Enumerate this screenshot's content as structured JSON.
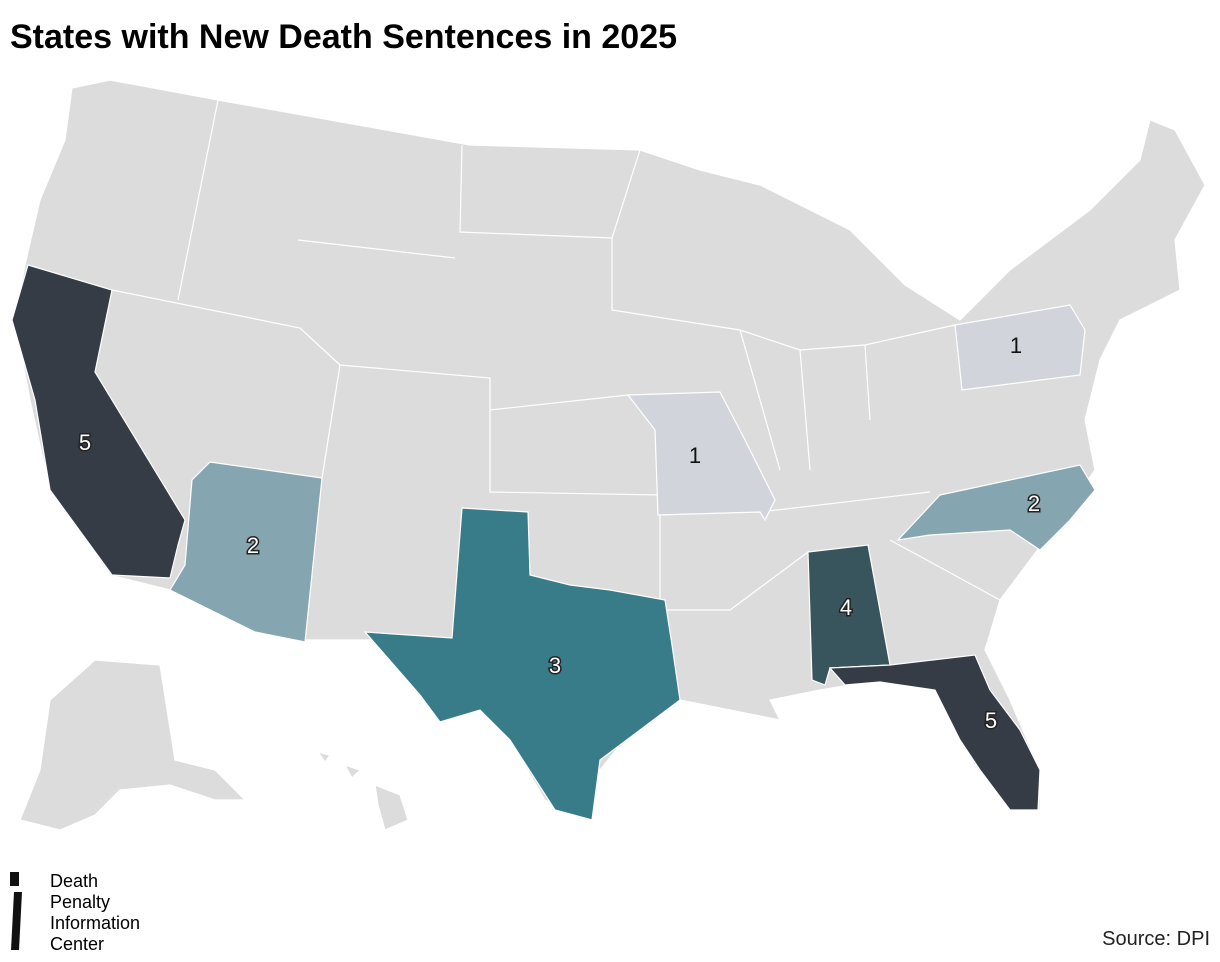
{
  "title": "States with New Death Sentences in 2025",
  "map": {
    "regions": [
      {
        "value": 5,
        "color": "#363c45"
      },
      {
        "value": 2,
        "color": "#85a5b0"
      },
      {
        "value": 3,
        "color": "#387c8a"
      },
      {
        "value": 1,
        "color": "#d1d5db"
      },
      {
        "value": 4,
        "color": "#38555e"
      },
      {
        "value": 5,
        "color": "#363c45"
      },
      {
        "value": 2,
        "color": "#85a5b0"
      },
      {
        "value": 1,
        "color": "#d1d5db"
      }
    ]
  },
  "logo": [
    "Death",
    "Penalty",
    "Information",
    "Center"
  ],
  "source": "Source: DPI"
}
